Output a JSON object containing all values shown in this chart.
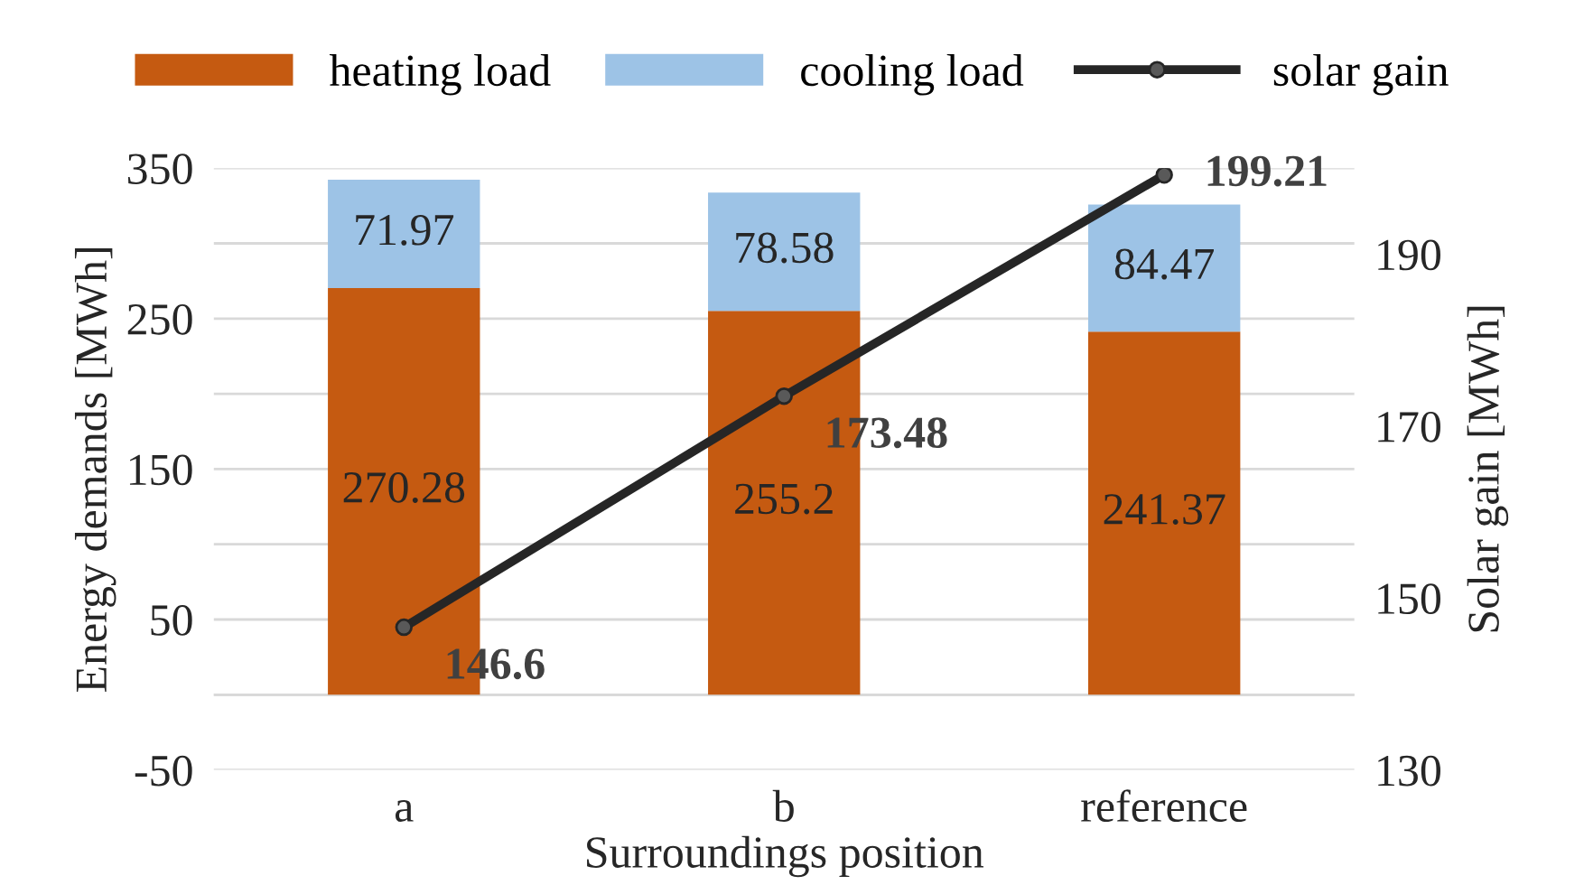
{
  "chart_data": {
    "type": "bar",
    "stacked": true,
    "xlabel": "Surroundings position",
    "ylabel": "Energy demands [MWh]",
    "y2label": "Solar gain [MWh]",
    "categories": [
      "a",
      "b",
      "reference"
    ],
    "series": [
      {
        "name": "heating load",
        "color": "#c55a11",
        "values": [
          270.28,
          255.2,
          241.37
        ]
      },
      {
        "name": "cooling load",
        "color": "#9dc3e6",
        "values": [
          71.97,
          78.58,
          84.47
        ]
      },
      {
        "name": "solar gain",
        "type": "line",
        "axis": "y2",
        "color": "#262626",
        "marker": "circle",
        "values": [
          146.6,
          173.48,
          199.21
        ]
      }
    ],
    "data_labels": true,
    "legend": "top",
    "grid": "y",
    "ylim": [
      -50,
      350
    ],
    "yticks": [
      -50,
      {
        "value": 0,
        "label": null
      },
      50,
      {
        "value": 100,
        "label": null
      },
      150,
      {
        "value": 200,
        "label": null
      },
      250,
      {
        "value": 300,
        "label": null
      },
      350
    ],
    "y2lim": [
      130,
      200
    ],
    "y2ticks": [
      130,
      150,
      170,
      190
    ]
  }
}
